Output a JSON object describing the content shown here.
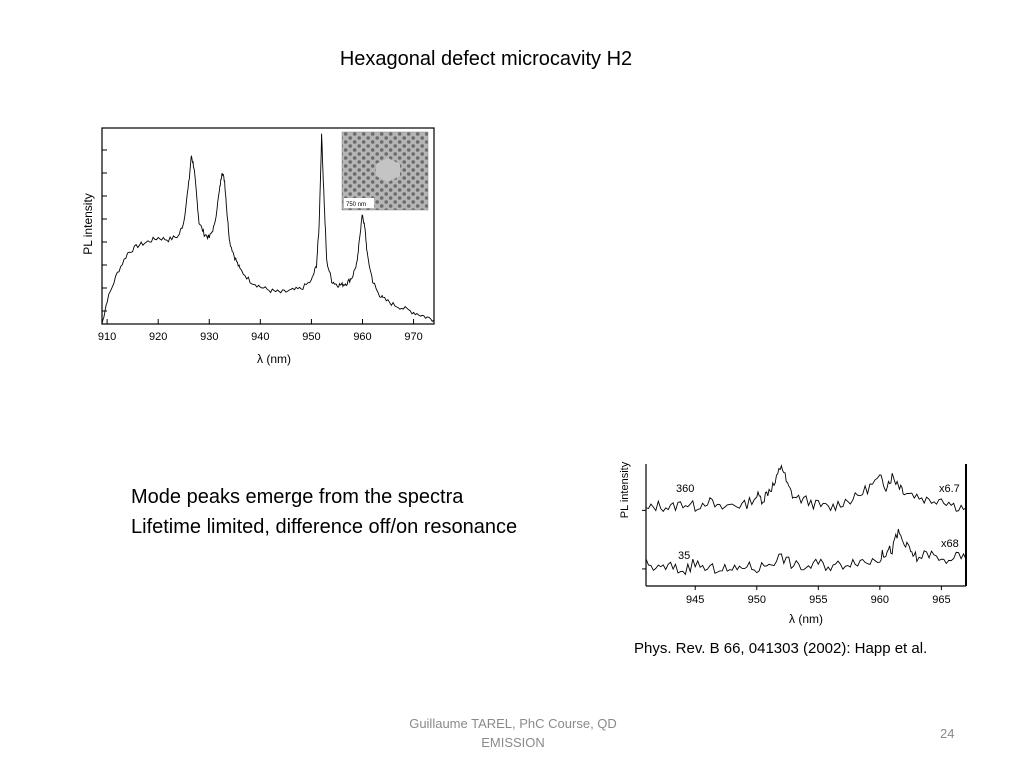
{
  "slide": {
    "title": "Hexagonal defect microcavity H2",
    "bullets": [
      "Mode peaks emerge from the spectra",
      "Lifetime limited, difference off/on resonance"
    ],
    "citation": "Phys. Rev. B 66, 041303 (2002): Happ et al.",
    "footer_line1": "Guillaume TAREL, PhC Course, QD",
    "footer_line2": "EMISSION",
    "page_number": "24"
  },
  "chart_data": [
    {
      "type": "line",
      "xlabel": "λ (nm)",
      "ylabel": "PL intensity",
      "xlim": [
        909,
        974
      ],
      "ylim": [
        0,
        1
      ],
      "xticks": [
        "910",
        "920",
        "930",
        "940",
        "950",
        "960",
        "970"
      ],
      "inset_label": "750 nm",
      "series": [
        {
          "x": [
            909,
            910,
            912,
            914,
            916,
            918,
            920,
            922,
            924,
            925,
            926,
            926.5,
            927,
            927.5,
            928,
            929,
            930,
            931,
            932,
            932.5,
            933,
            933.5,
            934,
            935,
            936,
            938,
            940,
            942,
            944,
            946,
            948,
            950,
            951,
            951.5,
            952,
            952.5,
            953,
            954,
            955,
            956,
            957,
            958,
            959,
            959.5,
            960,
            960.5,
            961,
            962,
            963,
            964,
            966,
            968,
            970,
            972,
            974
          ],
          "y": [
            0.0,
            0.12,
            0.26,
            0.36,
            0.4,
            0.42,
            0.44,
            0.43,
            0.45,
            0.52,
            0.72,
            0.86,
            0.8,
            0.66,
            0.52,
            0.46,
            0.44,
            0.5,
            0.68,
            0.78,
            0.73,
            0.56,
            0.42,
            0.34,
            0.28,
            0.22,
            0.19,
            0.17,
            0.16,
            0.17,
            0.18,
            0.22,
            0.3,
            0.5,
            0.96,
            0.62,
            0.32,
            0.22,
            0.2,
            0.2,
            0.21,
            0.24,
            0.32,
            0.46,
            0.56,
            0.48,
            0.34,
            0.22,
            0.16,
            0.13,
            0.1,
            0.08,
            0.06,
            0.04,
            0.02
          ]
        }
      ]
    },
    {
      "type": "line",
      "xlabel": "λ (nm)",
      "ylabel": "PL intensity",
      "xlim": [
        941,
        967
      ],
      "ylim": [
        0,
        1
      ],
      "xticks": [
        "945",
        "950",
        "955",
        "960",
        "965"
      ],
      "series": [
        {
          "name": "360",
          "annotation": "x6.7",
          "x": [
            941,
            942,
            943,
            944,
            945,
            946,
            947,
            948,
            949,
            950,
            950.5,
            951,
            951.5,
            952,
            952.5,
            953,
            954,
            955,
            956,
            957,
            958,
            959,
            960,
            960.5,
            961,
            961.5,
            962,
            963,
            964,
            965,
            966,
            967
          ],
          "y": [
            0.62,
            0.66,
            0.64,
            0.68,
            0.65,
            0.7,
            0.63,
            0.67,
            0.66,
            0.74,
            0.71,
            0.79,
            0.84,
            1.0,
            0.82,
            0.73,
            0.7,
            0.66,
            0.64,
            0.69,
            0.72,
            0.8,
            0.88,
            0.82,
            0.9,
            0.84,
            0.78,
            0.74,
            0.7,
            0.72,
            0.66,
            0.64
          ]
        },
        {
          "name": "35",
          "annotation": "x68",
          "x": [
            941,
            942,
            943,
            944,
            945,
            946,
            947,
            948,
            949,
            950,
            951,
            952,
            953,
            954,
            955,
            956,
            957,
            958,
            959,
            960,
            960.5,
            961,
            961.5,
            962,
            962.5,
            963,
            964,
            965,
            966,
            967
          ],
          "y": [
            0.18,
            0.14,
            0.16,
            0.12,
            0.19,
            0.13,
            0.15,
            0.12,
            0.17,
            0.14,
            0.19,
            0.24,
            0.17,
            0.15,
            0.19,
            0.16,
            0.18,
            0.21,
            0.2,
            0.23,
            0.28,
            0.3,
            0.44,
            0.34,
            0.28,
            0.23,
            0.27,
            0.2,
            0.24,
            0.22
          ]
        }
      ]
    }
  ]
}
